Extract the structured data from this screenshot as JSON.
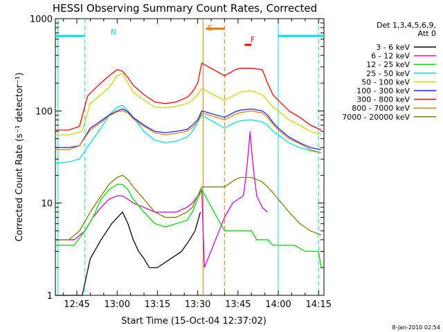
{
  "chart_data": {
    "type": "line",
    "title": "HESSI Observing Summary Count Rates, Corrected",
    "xlabel": "Start Time (15-Oct-04 12:37:02)",
    "ylabel": "Corrected Count Rate (s⁻¹ detector⁻¹)",
    "yscale": "log",
    "ylim": [
      1,
      1000
    ],
    "xlim_minutes": [
      37,
      137
    ],
    "x_ticks": [
      {
        "min": 45,
        "label": "12:45"
      },
      {
        "min": 60,
        "label": "13:00"
      },
      {
        "min": 75,
        "label": "13:15"
      },
      {
        "min": 90,
        "label": "13:30"
      },
      {
        "min": 105,
        "label": "13:45"
      },
      {
        "min": 120,
        "label": "14:00"
      },
      {
        "min": 135,
        "label": "14:15"
      }
    ],
    "y_ticks": [
      {
        "value": 1,
        "label": "1"
      },
      {
        "value": 10,
        "label": "10"
      },
      {
        "value": 100,
        "label": "100"
      },
      {
        "value": 1000,
        "label": "1000"
      }
    ],
    "legend": {
      "position": "right",
      "header": [
        "Det 1,3,4,5,6,9,",
        "Att 0"
      ]
    },
    "series": [
      {
        "name": "3 - 6 keV",
        "color": "#000000",
        "points": [
          [
            37,
            1
          ],
          [
            40,
            1
          ],
          [
            47,
            1
          ],
          [
            50,
            2.5
          ],
          [
            54,
            4
          ],
          [
            58,
            6
          ],
          [
            62,
            8
          ],
          [
            64,
            6
          ],
          [
            66,
            4
          ],
          [
            68,
            3
          ],
          [
            70,
            2.5
          ],
          [
            72,
            2
          ],
          [
            75,
            2
          ],
          [
            80,
            2.5
          ],
          [
            84,
            3
          ],
          [
            87,
            4
          ],
          [
            89,
            5
          ],
          [
            91,
            8
          ]
        ]
      },
      {
        "name": "6 - 12 keV",
        "color": "#d400d4",
        "points": [
          [
            37,
            4
          ],
          [
            44,
            4
          ],
          [
            48,
            5
          ],
          [
            51,
            7
          ],
          [
            54,
            9
          ],
          [
            57,
            11
          ],
          [
            60,
            12
          ],
          [
            62,
            12
          ],
          [
            64,
            11
          ],
          [
            66,
            10
          ],
          [
            70,
            9
          ],
          [
            74,
            8
          ],
          [
            78,
            8
          ],
          [
            82,
            8
          ],
          [
            86,
            9
          ],
          [
            88,
            10
          ],
          [
            90,
            12
          ],
          [
            91.5,
            14
          ],
          [
            92.5,
            2
          ],
          [
            100,
            7
          ],
          [
            103,
            10
          ],
          [
            105,
            11
          ],
          [
            107,
            12
          ],
          [
            108,
            20
          ],
          [
            109,
            40
          ],
          [
            109.5,
            60
          ],
          [
            110,
            40
          ],
          [
            111,
            20
          ],
          [
            112,
            12
          ],
          [
            114,
            9
          ],
          [
            116,
            8
          ]
        ]
      },
      {
        "name": "12 - 25 keV",
        "color": "#00e000",
        "points": [
          [
            37,
            3.5
          ],
          [
            44,
            3.5
          ],
          [
            48,
            5
          ],
          [
            51,
            7
          ],
          [
            54,
            11
          ],
          [
            57,
            14
          ],
          [
            60,
            16
          ],
          [
            62,
            16
          ],
          [
            64,
            14
          ],
          [
            66,
            11
          ],
          [
            70,
            8
          ],
          [
            74,
            6
          ],
          [
            78,
            5.5
          ],
          [
            82,
            6
          ],
          [
            86,
            6.5
          ],
          [
            88,
            8
          ],
          [
            90,
            11
          ],
          [
            91.5,
            14
          ],
          [
            100,
            5
          ],
          [
            104,
            5
          ],
          [
            106,
            5
          ],
          [
            108,
            5
          ],
          [
            110,
            5
          ],
          [
            112,
            4
          ],
          [
            114,
            4
          ],
          [
            116,
            4
          ],
          [
            118,
            3.5
          ],
          [
            122,
            3.5
          ],
          [
            126,
            3.5
          ],
          [
            130,
            3
          ],
          [
            135,
            3
          ],
          [
            136,
            2
          ]
        ]
      },
      {
        "name": "25 - 50 keV",
        "color": "#00e0e0",
        "points": [
          [
            37,
            27
          ],
          [
            42,
            28
          ],
          [
            46,
            30
          ],
          [
            50,
            45
          ],
          [
            54,
            65
          ],
          [
            57,
            90
          ],
          [
            60,
            110
          ],
          [
            62,
            115
          ],
          [
            64,
            100
          ],
          [
            66,
            85
          ],
          [
            70,
            60
          ],
          [
            74,
            48
          ],
          [
            78,
            45
          ],
          [
            82,
            47
          ],
          [
            86,
            52
          ],
          [
            88,
            60
          ],
          [
            90,
            75
          ],
          [
            91.5,
            90
          ],
          [
            100,
            65
          ],
          [
            104,
            75
          ],
          [
            106,
            78
          ],
          [
            110,
            80
          ],
          [
            114,
            76
          ],
          [
            116,
            70
          ],
          [
            118,
            60
          ],
          [
            120,
            55
          ],
          [
            124,
            45
          ],
          [
            128,
            40
          ],
          [
            132,
            37
          ],
          [
            136,
            35
          ]
        ]
      },
      {
        "name": "50 - 100 keV",
        "color": "#d4d400",
        "points": [
          [
            37,
            55
          ],
          [
            42,
            55
          ],
          [
            47,
            60
          ],
          [
            50,
            120
          ],
          [
            54,
            150
          ],
          [
            57,
            180
          ],
          [
            60,
            240
          ],
          [
            62,
            255
          ],
          [
            64,
            200
          ],
          [
            66,
            160
          ],
          [
            70,
            130
          ],
          [
            74,
            110
          ],
          [
            78,
            108
          ],
          [
            82,
            112
          ],
          [
            86,
            120
          ],
          [
            88,
            130
          ],
          [
            90,
            150
          ],
          [
            91.5,
            175
          ],
          [
            100,
            130
          ],
          [
            104,
            150
          ],
          [
            106,
            160
          ],
          [
            110,
            165
          ],
          [
            114,
            150
          ],
          [
            116,
            130
          ],
          [
            118,
            110
          ],
          [
            120,
            100
          ],
          [
            124,
            80
          ],
          [
            128,
            70
          ],
          [
            132,
            60
          ],
          [
            136,
            55
          ]
        ]
      },
      {
        "name": "100 - 300 keV",
        "color": "#2020ff",
        "points": [
          [
            37,
            40
          ],
          [
            42,
            40
          ],
          [
            46,
            42
          ],
          [
            50,
            65
          ],
          [
            54,
            78
          ],
          [
            57,
            90
          ],
          [
            60,
            100
          ],
          [
            62,
            105
          ],
          [
            64,
            98
          ],
          [
            66,
            85
          ],
          [
            70,
            70
          ],
          [
            74,
            60
          ],
          [
            78,
            58
          ],
          [
            82,
            60
          ],
          [
            86,
            63
          ],
          [
            88,
            70
          ],
          [
            90,
            80
          ],
          [
            91.5,
            100
          ],
          [
            100,
            85
          ],
          [
            104,
            98
          ],
          [
            106,
            102
          ],
          [
            110,
            105
          ],
          [
            114,
            100
          ],
          [
            116,
            90
          ],
          [
            118,
            75
          ],
          [
            120,
            65
          ],
          [
            124,
            52
          ],
          [
            128,
            45
          ],
          [
            132,
            40
          ],
          [
            136,
            38
          ]
        ]
      },
      {
        "name": "300 - 800 keV",
        "color": "#ff0000",
        "points": [
          [
            37,
            62
          ],
          [
            42,
            62
          ],
          [
            46,
            68
          ],
          [
            49,
            145
          ],
          [
            53,
            190
          ],
          [
            57,
            240
          ],
          [
            60,
            280
          ],
          [
            62,
            270
          ],
          [
            64,
            230
          ],
          [
            66,
            190
          ],
          [
            70,
            150
          ],
          [
            74,
            125
          ],
          [
            78,
            120
          ],
          [
            82,
            125
          ],
          [
            86,
            140
          ],
          [
            88,
            160
          ],
          [
            90,
            200
          ],
          [
            91.5,
            330
          ],
          [
            100,
            240
          ],
          [
            104,
            280
          ],
          [
            106,
            290
          ],
          [
            110,
            290
          ],
          [
            114,
            280
          ],
          [
            115,
            240
          ],
          [
            116,
            200
          ],
          [
            118,
            150
          ],
          [
            120,
            130
          ],
          [
            124,
            100
          ],
          [
            128,
            85
          ],
          [
            132,
            70
          ],
          [
            136,
            62
          ]
        ]
      },
      {
        "name": "800 - 7000 keV",
        "color": "#e08000",
        "points": [
          [
            37,
            38
          ],
          [
            42,
            38
          ],
          [
            46,
            42
          ],
          [
            50,
            62
          ],
          [
            54,
            75
          ],
          [
            57,
            88
          ],
          [
            60,
            98
          ],
          [
            62,
            100
          ],
          [
            64,
            95
          ],
          [
            66,
            82
          ],
          [
            70,
            68
          ],
          [
            74,
            58
          ],
          [
            78,
            55
          ],
          [
            82,
            57
          ],
          [
            86,
            60
          ],
          [
            88,
            66
          ],
          [
            90,
            76
          ],
          [
            91.5,
            95
          ],
          [
            100,
            80
          ],
          [
            104,
            92
          ],
          [
            106,
            96
          ],
          [
            110,
            100
          ],
          [
            114,
            95
          ],
          [
            116,
            85
          ],
          [
            118,
            72
          ],
          [
            120,
            62
          ],
          [
            124,
            50
          ],
          [
            128,
            44
          ],
          [
            132,
            38
          ],
          [
            136,
            35
          ]
        ]
      },
      {
        "name": "7000 - 20000 keV",
        "color": "#808000",
        "points": [
          [
            37,
            4
          ],
          [
            42,
            4
          ],
          [
            46,
            5
          ],
          [
            50,
            8
          ],
          [
            54,
            12
          ],
          [
            57,
            16
          ],
          [
            60,
            19
          ],
          [
            62,
            20
          ],
          [
            64,
            18
          ],
          [
            66,
            15
          ],
          [
            70,
            11
          ],
          [
            74,
            8
          ],
          [
            78,
            7
          ],
          [
            82,
            7
          ],
          [
            86,
            8
          ],
          [
            88,
            9
          ],
          [
            90,
            12
          ],
          [
            91.5,
            15
          ],
          [
            100,
            15
          ],
          [
            104,
            18
          ],
          [
            106,
            19
          ],
          [
            110,
            19
          ],
          [
            114,
            17
          ],
          [
            116,
            15
          ],
          [
            118,
            13
          ],
          [
            120,
            11
          ],
          [
            124,
            8
          ],
          [
            128,
            6
          ],
          [
            132,
            5
          ],
          [
            136,
            4.5
          ]
        ]
      }
    ],
    "annotations": {
      "markers": [
        {
          "label": "N",
          "color": "#00e0e0"
        },
        {
          "label": "S",
          "color": "#e08000"
        },
        {
          "label": "F",
          "color": "#ff0000"
        }
      ],
      "bars": [
        {
          "color": "#00e0e0",
          "x": [
            37,
            48
          ],
          "y": 650
        },
        {
          "color": "#00e0e0",
          "x": [
            120,
            137
          ],
          "y": 650
        },
        {
          "color": "#e08000",
          "x": [
            93,
            100
          ],
          "y": 780
        },
        {
          "color": "#ff0000",
          "x": [
            107.5,
            110
          ],
          "y": 520
        }
      ],
      "vlines": [
        {
          "min": 38,
          "color": "#00e0e0",
          "style": "solid"
        },
        {
          "min": 48,
          "color": "#00e0e0",
          "style": "dashed"
        },
        {
          "min": 120,
          "color": "#00e0e0",
          "style": "solid"
        },
        {
          "min": 135,
          "color": "#00e0e0",
          "style": "dashed"
        },
        {
          "min": 92,
          "color": "#e08000",
          "style": "solid"
        },
        {
          "min": 100,
          "color": "#e08000",
          "style": "dashed"
        }
      ]
    },
    "footer_timestamp": "8-Jan-2010 02:54"
  }
}
